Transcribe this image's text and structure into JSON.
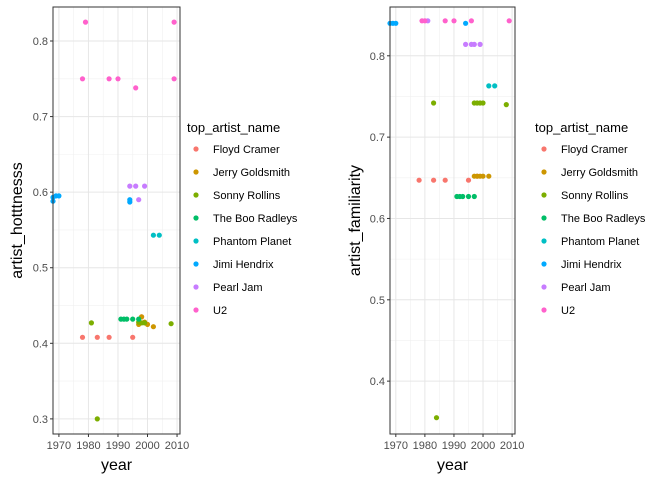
{
  "colors": {
    "Floyd Cramer": "#F8766D",
    "Jerry Goldsmith": "#CD9600",
    "Sonny Rollins": "#7CAE00",
    "The Boo Radleys": "#00BE67",
    "Phantom Planet": "#00BFC4",
    "Jimi Hendrix": "#00A9FF",
    "Pearl Jam": "#C77CFF",
    "U2": "#FF61CC"
  },
  "chart_data": [
    {
      "type": "scatter",
      "xlabel": "year",
      "ylabel": "artist_hotttnesss",
      "xlim": [
        1968,
        2011
      ],
      "ylim": [
        0.28,
        0.845
      ],
      "x_ticks": [
        1970,
        1980,
        1990,
        2000,
        2010
      ],
      "y_ticks": [
        0.3,
        0.4,
        0.5,
        0.6,
        0.7,
        0.8
      ],
      "grid": true,
      "legend_title": "top_artist_name",
      "legend_position": "right",
      "series": [
        {
          "name": "Floyd Cramer",
          "points": [
            [
              1978,
              0.408
            ],
            [
              1983,
              0.408
            ],
            [
              1987,
              0.408
            ],
            [
              1995,
              0.408
            ],
            [
              1998,
              0.435
            ]
          ]
        },
        {
          "name": "Jerry Goldsmith",
          "points": [
            [
              1997,
              0.425
            ],
            [
              1998,
              0.435
            ],
            [
              1999,
              0.428
            ],
            [
              2000,
              0.425
            ],
            [
              2002,
              0.422
            ]
          ]
        },
        {
          "name": "Sonny Rollins",
          "points": [
            [
              1981,
              0.427
            ],
            [
              1983,
              0.3
            ],
            [
              1997,
              0.428
            ],
            [
              1998,
              0.427
            ],
            [
              1999,
              0.427
            ],
            [
              2008,
              0.426
            ]
          ]
        },
        {
          "name": "The Boo Radleys",
          "points": [
            [
              1991,
              0.432
            ],
            [
              1992,
              0.432
            ],
            [
              1993,
              0.432
            ],
            [
              1995,
              0.432
            ],
            [
              1997,
              0.432
            ]
          ]
        },
        {
          "name": "Phantom Planet",
          "points": [
            [
              2002,
              0.543
            ],
            [
              2004,
              0.543
            ]
          ]
        },
        {
          "name": "Jimi Hendrix",
          "points": [
            [
              1968,
              0.593
            ],
            [
              1969,
              0.595
            ],
            [
              1970,
              0.595
            ],
            [
              1968,
              0.588
            ],
            [
              1994,
              0.587
            ],
            [
              1994,
              0.59
            ]
          ]
        },
        {
          "name": "Pearl Jam",
          "points": [
            [
              1994,
              0.608
            ],
            [
              1996,
              0.608
            ],
            [
              1997,
              0.59
            ],
            [
              1999,
              0.608
            ]
          ]
        },
        {
          "name": "U2",
          "points": [
            [
              1979,
              0.825
            ],
            [
              1978,
              0.75
            ],
            [
              1987,
              0.75
            ],
            [
              1990,
              0.75
            ],
            [
              1996,
              0.738
            ],
            [
              2009,
              0.825
            ],
            [
              2009,
              0.75
            ]
          ]
        }
      ]
    },
    {
      "type": "scatter",
      "xlabel": "year",
      "ylabel": "artist_familiarity",
      "xlim": [
        1968,
        2011
      ],
      "ylim": [
        0.335,
        0.86
      ],
      "x_ticks": [
        1970,
        1980,
        1990,
        2000,
        2010
      ],
      "y_ticks": [
        0.4,
        0.5,
        0.6,
        0.7,
        0.8
      ],
      "grid": true,
      "legend_title": "top_artist_name",
      "legend_position": "right",
      "series": [
        {
          "name": "Floyd Cramer",
          "points": [
            [
              1978,
              0.647
            ],
            [
              1983,
              0.647
            ],
            [
              1987,
              0.647
            ],
            [
              1995,
              0.647
            ],
            [
              1998,
              0.652
            ]
          ]
        },
        {
          "name": "Jerry Goldsmith",
          "points": [
            [
              1997,
              0.652
            ],
            [
              1998,
              0.652
            ],
            [
              1999,
              0.652
            ],
            [
              2000,
              0.652
            ],
            [
              2002,
              0.652
            ]
          ]
        },
        {
          "name": "Sonny Rollins",
          "points": [
            [
              1983,
              0.742
            ],
            [
              1984,
              0.355
            ],
            [
              1997,
              0.742
            ],
            [
              1998,
              0.742
            ],
            [
              1999,
              0.742
            ],
            [
              2000,
              0.742
            ],
            [
              2008,
              0.74
            ]
          ]
        },
        {
          "name": "The Boo Radleys",
          "points": [
            [
              1991,
              0.627
            ],
            [
              1992,
              0.627
            ],
            [
              1993,
              0.627
            ],
            [
              1995,
              0.627
            ],
            [
              1997,
              0.627
            ]
          ]
        },
        {
          "name": "Phantom Planet",
          "points": [
            [
              2002,
              0.763
            ],
            [
              2004,
              0.763
            ]
          ]
        },
        {
          "name": "Jimi Hendrix",
          "points": [
            [
              1968,
              0.84
            ],
            [
              1969,
              0.84
            ],
            [
              1970,
              0.84
            ],
            [
              1994,
              0.84
            ]
          ]
        },
        {
          "name": "Pearl Jam",
          "points": [
            [
              1981,
              0.843
            ],
            [
              1994,
              0.814
            ],
            [
              1996,
              0.814
            ],
            [
              1997,
              0.814
            ],
            [
              1999,
              0.814
            ]
          ]
        },
        {
          "name": "U2",
          "points": [
            [
              1979,
              0.843
            ],
            [
              1980,
              0.843
            ],
            [
              1987,
              0.843
            ],
            [
              1990,
              0.843
            ],
            [
              1996,
              0.843
            ],
            [
              2009,
              0.843
            ]
          ]
        }
      ]
    }
  ]
}
